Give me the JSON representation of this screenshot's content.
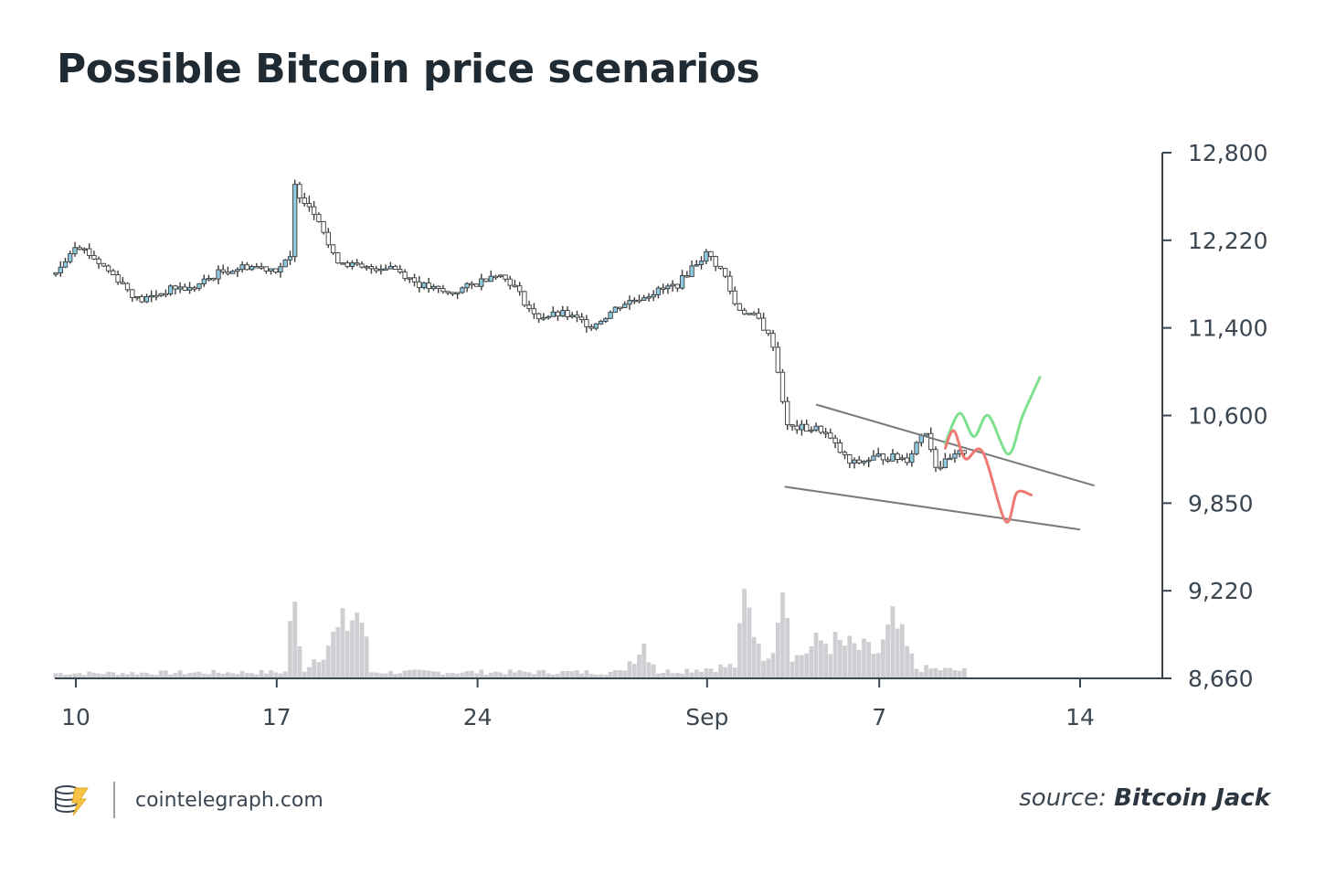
{
  "title": "Possible Bitcoin price scenarios",
  "footer": {
    "brand": "cointelegraph.com",
    "source_prefix": "source:",
    "source_name": "Bitcoin Jack"
  },
  "colors": {
    "axis": "#3c4650",
    "candle_up": "#8fcbe0",
    "candle_down": "#3c3c3c",
    "volume": "#cfcfd3",
    "wedge": "#7a7a7a",
    "bull_scenario": "#7fe08f",
    "bear_scenario": "#ee7a74"
  },
  "chart_data": {
    "type": "candlestick",
    "y_ticks": [
      {
        "value": 12800,
        "label": "12,800"
      },
      {
        "value": 12220,
        "label": "12,220"
      },
      {
        "value": 11400,
        "label": "11,400"
      },
      {
        "value": 10600,
        "label": "10,600"
      },
      {
        "value": 9850,
        "label": "9,850"
      },
      {
        "value": 9220,
        "label": "9,220"
      },
      {
        "value": 8660,
        "label": "8,660"
      }
    ],
    "x_ticks": [
      {
        "day": 0,
        "label": "10"
      },
      {
        "day": 7,
        "label": "17"
      },
      {
        "day": 14,
        "label": "24"
      },
      {
        "day": 22,
        "label": "Sep"
      },
      {
        "day": 28,
        "label": "7"
      },
      {
        "day": 35,
        "label": "14"
      }
    ],
    "x_range_days": [
      -0.7,
      37.5
    ],
    "price_keypoints": [
      [
        -0.7,
        11900
      ],
      [
        0,
        12200
      ],
      [
        1.5,
        11850
      ],
      [
        2.2,
        11650
      ],
      [
        3.5,
        11780
      ],
      [
        4,
        11760
      ],
      [
        5,
        11920
      ],
      [
        6,
        11980
      ],
      [
        7,
        11950
      ],
      [
        7.5,
        12050
      ],
      [
        7.6,
        12580
      ],
      [
        8.5,
        12370
      ],
      [
        9,
        12050
      ],
      [
        10,
        11950
      ],
      [
        11,
        11980
      ],
      [
        12,
        11800
      ],
      [
        13,
        11720
      ],
      [
        14,
        11820
      ],
      [
        14.6,
        11920
      ],
      [
        15.2,
        11820
      ],
      [
        16,
        11500
      ],
      [
        17,
        11530
      ],
      [
        18,
        11420
      ],
      [
        19,
        11620
      ],
      [
        20,
        11720
      ],
      [
        21,
        11810
      ],
      [
        21.5,
        11980
      ],
      [
        22,
        12100
      ],
      [
        22.6,
        11900
      ],
      [
        23,
        11600
      ],
      [
        23.8,
        11480
      ],
      [
        24.3,
        11250
      ],
      [
        24.8,
        10500
      ],
      [
        26,
        10480
      ],
      [
        27,
        10180
      ],
      [
        28,
        10250
      ],
      [
        29,
        10230
      ],
      [
        29.6,
        10500
      ],
      [
        30,
        10150
      ],
      [
        31,
        10300
      ]
    ],
    "volume_keypoints": [
      [
        -0.7,
        4
      ],
      [
        7.4,
        5
      ],
      [
        7.5,
        72
      ],
      [
        7.9,
        6
      ],
      [
        9.9,
        55
      ],
      [
        10.3,
        5
      ],
      [
        19,
        5
      ],
      [
        19.8,
        28
      ],
      [
        20.3,
        5
      ],
      [
        23,
        10
      ],
      [
        23.3,
        60
      ],
      [
        24.2,
        8
      ],
      [
        24.6,
        100
      ],
      [
        25,
        15
      ],
      [
        26,
        30
      ],
      [
        28,
        20
      ],
      [
        28.5,
        44
      ],
      [
        29.3,
        8
      ],
      [
        31,
        6
      ]
    ],
    "volume_peak_pct": 100,
    "wedge_lines": [
      {
        "name": "resistance",
        "from": [
          25.8,
          10700
        ],
        "to": [
          35.5,
          10000
        ]
      },
      {
        "name": "support",
        "from": [
          24.7,
          9990
        ],
        "to": [
          35,
          9660
        ]
      }
    ],
    "scenario_paths": [
      {
        "name": "bull",
        "points": [
          [
            30.3,
            10360
          ],
          [
            30.8,
            10620
          ],
          [
            31.3,
            10420
          ],
          [
            31.8,
            10600
          ],
          [
            32.5,
            10270
          ],
          [
            33,
            10600
          ],
          [
            33.6,
            10950
          ]
        ]
      },
      {
        "name": "bear",
        "points": [
          [
            30.3,
            10320
          ],
          [
            30.6,
            10470
          ],
          [
            31,
            10230
          ],
          [
            31.6,
            10290
          ],
          [
            32.4,
            9720
          ],
          [
            32.8,
            9940
          ],
          [
            33.3,
            9920
          ]
        ]
      }
    ]
  }
}
